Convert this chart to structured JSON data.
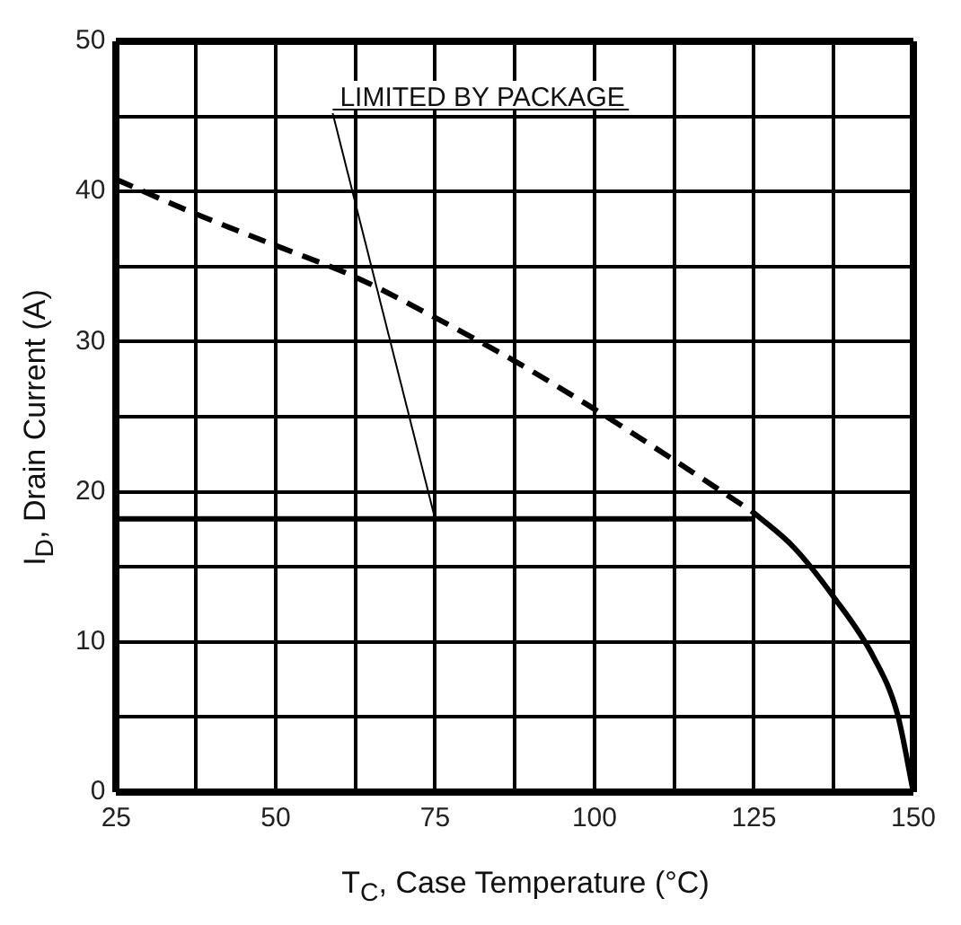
{
  "chart_data": {
    "type": "line",
    "xlabel": "T$_{C}$, Case Temperature   (°C)",
    "ylabel": "I$_{D}$, Drain Current (A)",
    "xlim": [
      25,
      150
    ],
    "xticks": [
      25,
      {
        "value": 37.5,
        "label": null
      },
      50,
      {
        "value": 62.5,
        "label": null
      },
      75,
      {
        "value": 87.5,
        "label": null
      },
      100,
      {
        "value": 112.5,
        "label": null
      },
      125,
      {
        "value": 137.5,
        "label": null
      },
      150
    ],
    "ylim": [
      0,
      50
    ],
    "yticks": [
      0,
      {
        "value": 5,
        "label": null
      },
      10,
      {
        "value": 15,
        "label": null
      },
      20,
      {
        "value": 25,
        "label": null
      },
      30,
      {
        "value": 35,
        "label": null
      },
      40,
      {
        "value": 45,
        "label": null
      },
      50
    ],
    "grid": true,
    "marker": "none",
    "series": [
      {
        "color": "#000000",
        "line_style": "dashed",
        "x": [
          25,
          37.5,
          50,
          62.5,
          75,
          87.5,
          100,
          112.5,
          125
        ],
        "values": [
          40.8,
          38.5,
          36.4,
          34.3,
          31.6,
          28.7,
          25.5,
          22.1,
          18.6
        ]
      },
      {
        "color": "#000000",
        "line_style": "solid",
        "x": [
          125,
          131.25,
          137.5,
          143.75,
          147.5,
          150
        ],
        "values": [
          18.6,
          16.3,
          13.0,
          9.0,
          5.2,
          0
        ]
      },
      {
        "color": "#000000",
        "line_style": "solid",
        "x": [
          25,
          125
        ],
        "values": [
          18.2,
          18.2
        ]
      }
    ],
    "annotations": [
      {
        "text": "LIMITED BY PACKAGE",
        "x": 75,
        "y": 18.2
      }
    ]
  }
}
